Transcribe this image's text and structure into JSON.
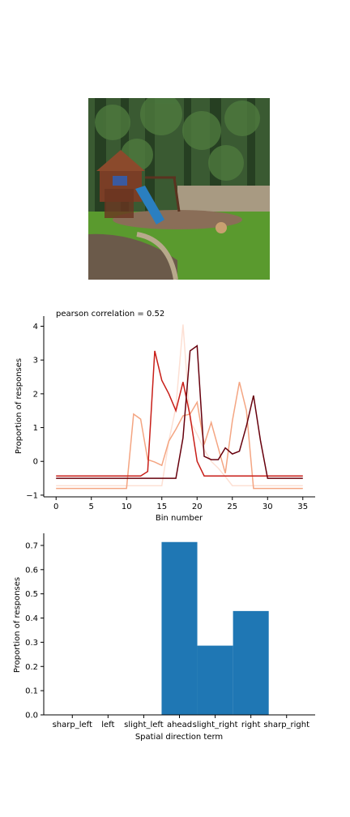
{
  "image": {
    "icon": "backyard-playground-photo",
    "colors": {
      "sky": "#d9ddd4",
      "trees": "#2f4a2a",
      "grass": "#5a9a2e",
      "slide": "#2a7fc0",
      "house": "#7a3e26",
      "mulch": "#8a6e58"
    }
  },
  "chart_data": [
    {
      "type": "line",
      "title": "pearson correlation = 0.52",
      "xlabel": "Bin number",
      "ylabel": "Proportion of responses",
      "xlim": [
        -1.75,
        36.75
      ],
      "ylim": [
        -1.05,
        4.3
      ],
      "xticks": [
        0,
        5,
        10,
        15,
        20,
        25,
        30,
        35
      ],
      "yticks": [
        -1,
        0,
        1,
        2,
        3,
        4
      ],
      "x": [
        0,
        1,
        2,
        3,
        4,
        5,
        6,
        7,
        8,
        9,
        10,
        11,
        12,
        13,
        14,
        15,
        16,
        17,
        18,
        19,
        20,
        21,
        22,
        23,
        24,
        25,
        26,
        27,
        28,
        29,
        30,
        31,
        32,
        33,
        34,
        35
      ],
      "series": [
        {
          "color": "#fde0d4",
          "values": [
            -0.72,
            -0.72,
            -0.72,
            -0.72,
            -0.72,
            -0.72,
            -0.72,
            -0.72,
            -0.72,
            -0.72,
            -0.72,
            -0.72,
            -0.72,
            -0.72,
            -0.72,
            -0.72,
            0.6,
            1.6,
            4.05,
            1.2,
            0.8,
            0.35,
            0.0,
            -0.2,
            -0.45,
            -0.72,
            -0.72,
            -0.72,
            -0.72,
            -0.72,
            -0.72,
            -0.72,
            -0.72,
            -0.72,
            -0.72,
            -0.72
          ]
        },
        {
          "color": "#f4a582",
          "values": [
            -0.8,
            -0.8,
            -0.8,
            -0.8,
            -0.8,
            -0.8,
            -0.8,
            -0.8,
            -0.8,
            -0.8,
            -0.8,
            1.4,
            1.25,
            0.05,
            -0.02,
            -0.12,
            0.6,
            0.95,
            1.35,
            1.4,
            1.75,
            0.5,
            1.15,
            0.4,
            -0.35,
            1.2,
            2.35,
            1.5,
            -0.8,
            -0.8,
            -0.8,
            -0.8,
            -0.8,
            -0.8,
            -0.8,
            -0.8
          ]
        },
        {
          "color": "#c81e18",
          "values": [
            -0.43,
            -0.43,
            -0.43,
            -0.43,
            -0.43,
            -0.43,
            -0.43,
            -0.43,
            -0.43,
            -0.43,
            -0.43,
            -0.43,
            -0.43,
            -0.3,
            3.27,
            2.4,
            2.0,
            1.5,
            2.35,
            1.35,
            0.0,
            -0.43,
            -0.43,
            -0.43,
            -0.43,
            -0.43,
            -0.43,
            -0.43,
            -0.43,
            -0.43,
            -0.43,
            -0.43,
            -0.43,
            -0.43,
            -0.43,
            -0.43
          ]
        },
        {
          "color": "#67000d",
          "values": [
            -0.5,
            -0.5,
            -0.5,
            -0.5,
            -0.5,
            -0.5,
            -0.5,
            -0.5,
            -0.5,
            -0.5,
            -0.5,
            -0.5,
            -0.5,
            -0.5,
            -0.5,
            -0.5,
            -0.5,
            -0.5,
            0.7,
            3.27,
            3.42,
            0.15,
            0.05,
            0.05,
            0.4,
            0.22,
            0.3,
            1.05,
            1.95,
            0.6,
            -0.5,
            -0.5,
            -0.5,
            -0.5,
            -0.5,
            -0.5
          ]
        }
      ]
    },
    {
      "type": "bar",
      "title": "",
      "xlabel": "Spatial direction term",
      "ylabel": "Proportion of responses",
      "categories": [
        "sharp_left",
        "left",
        "slight_left",
        "ahead",
        "slight_right",
        "right",
        "sharp_right"
      ],
      "values": [
        0,
        0,
        0,
        0.714,
        0.286,
        0.429,
        0
      ],
      "ylim": [
        0,
        0.75
      ],
      "yticks": [
        "0.0",
        "0.1",
        "0.2",
        "0.3",
        "0.4",
        "0.5",
        "0.6",
        "0.7"
      ],
      "color": "#1f77b4"
    }
  ]
}
